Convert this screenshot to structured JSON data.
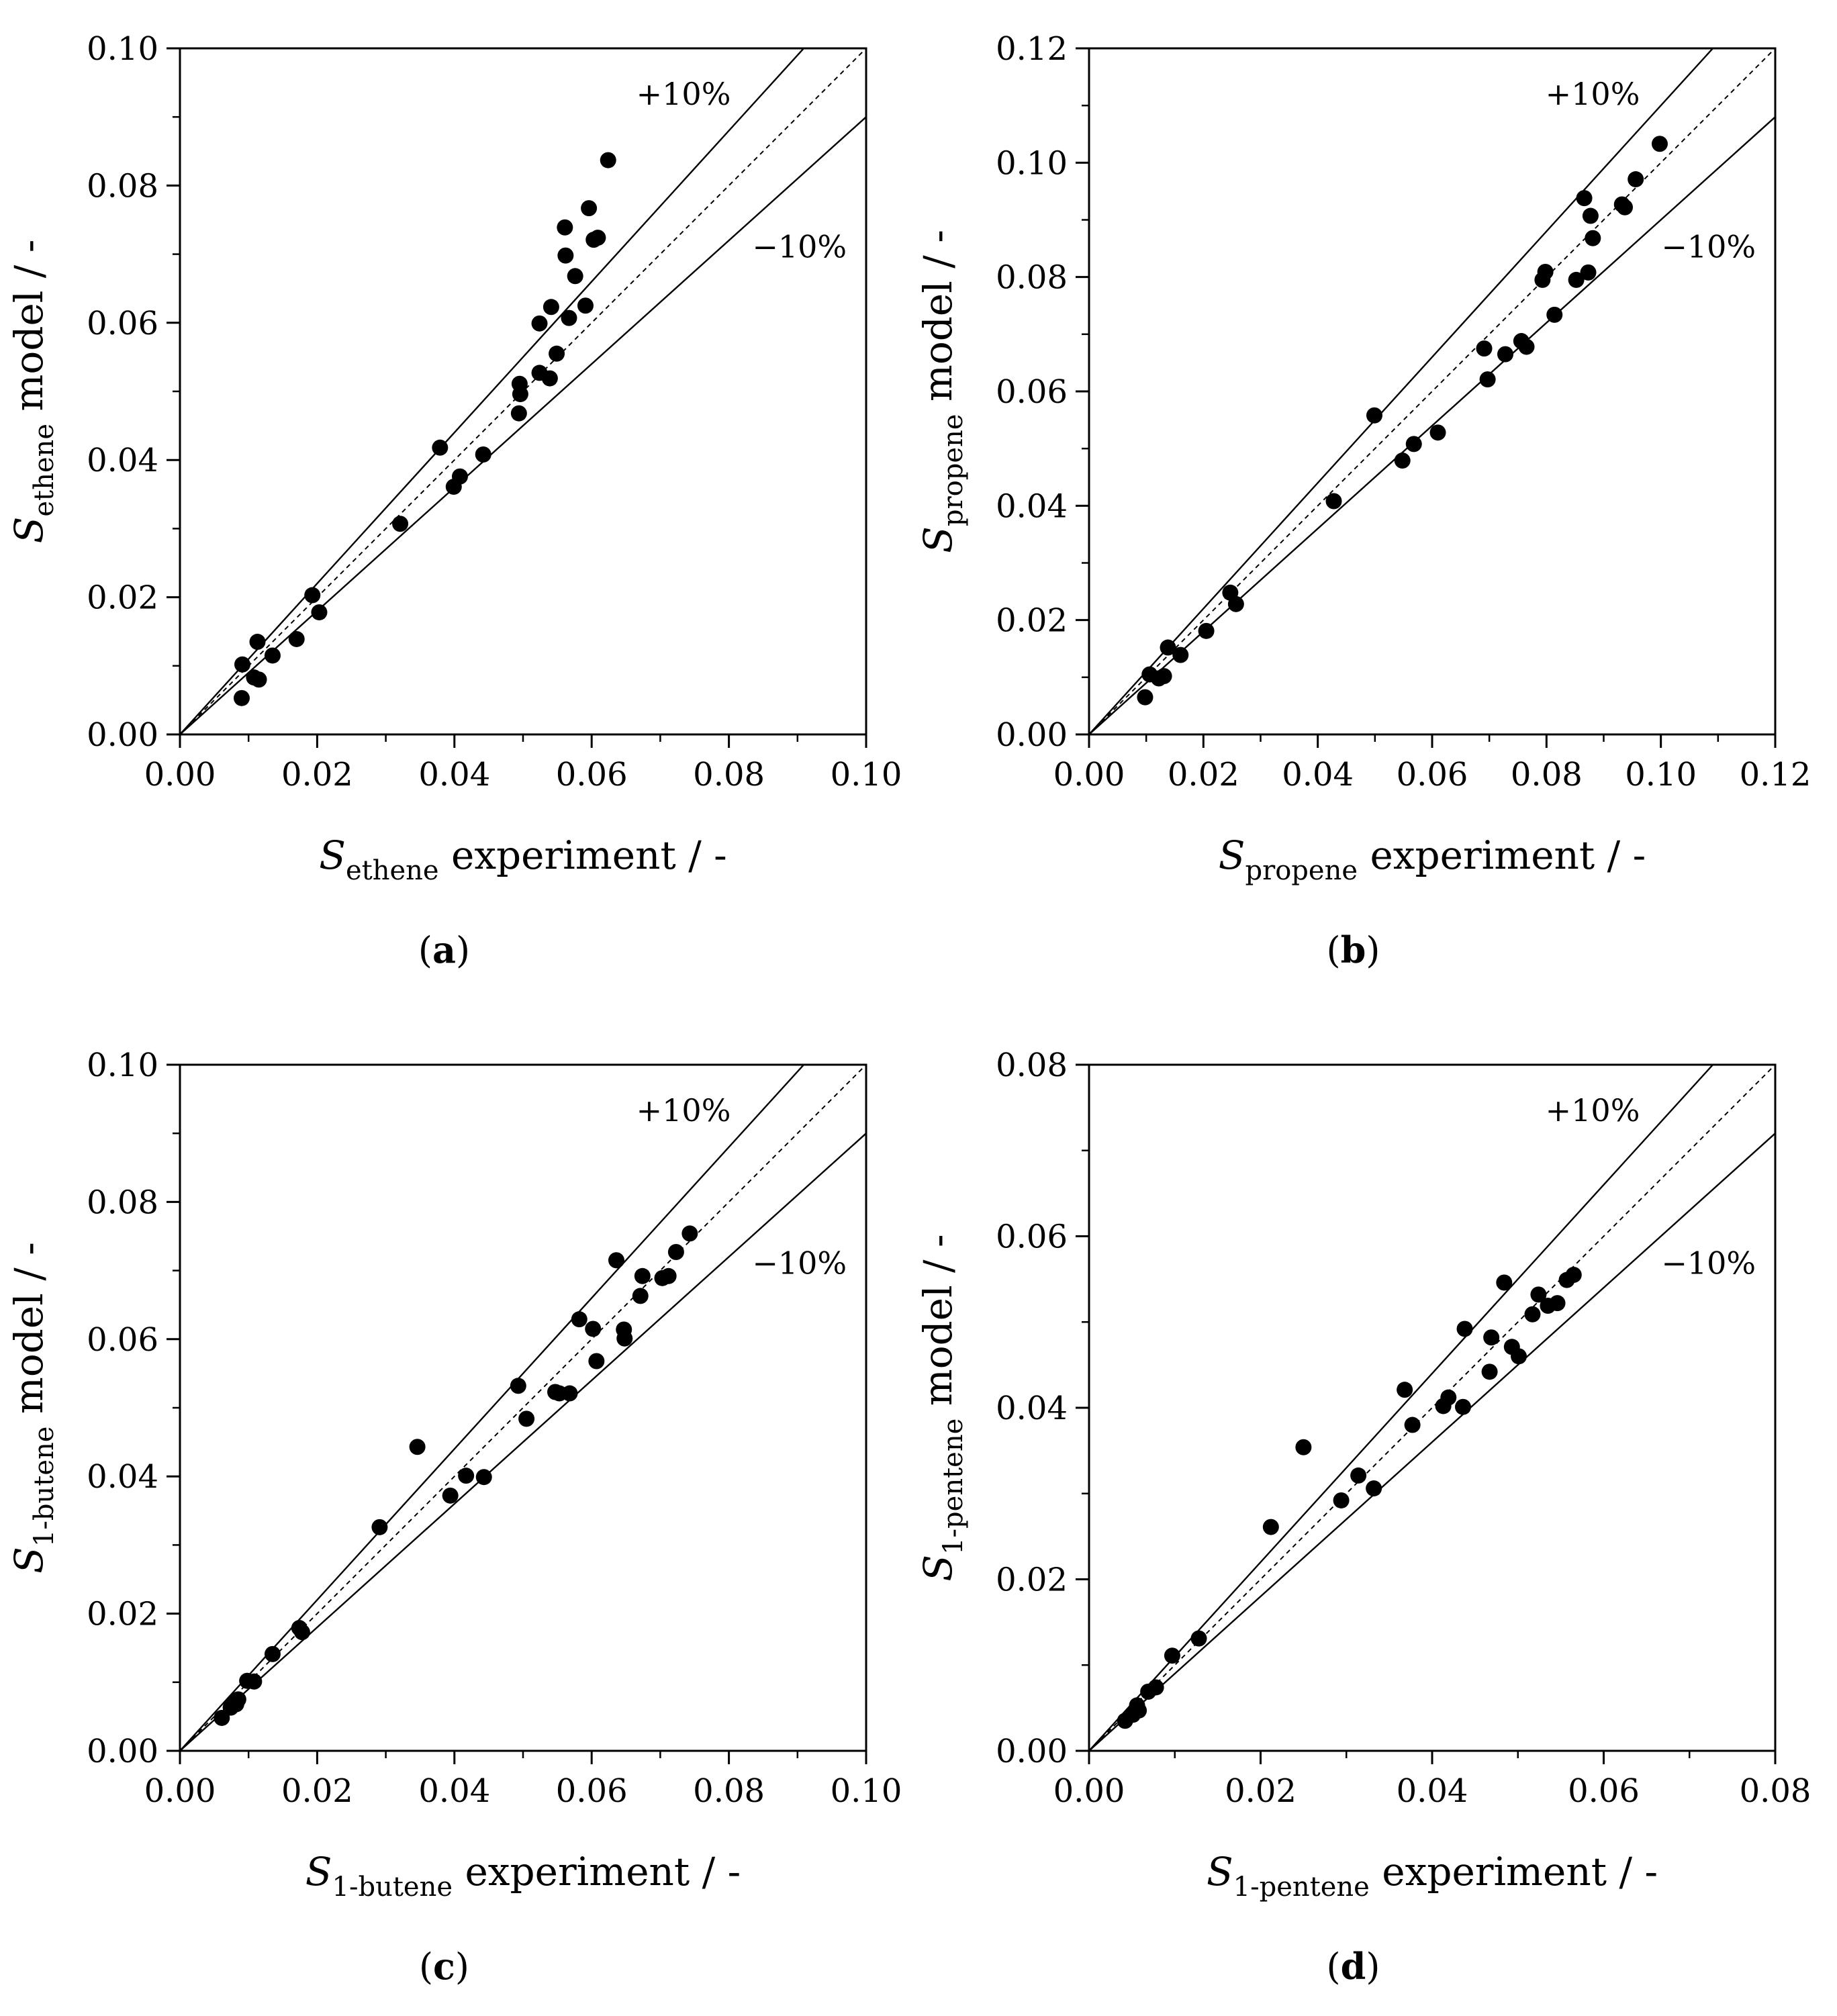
{
  "figure": {
    "band_labels": {
      "plus": "+10%",
      "minus": "−10%"
    },
    "y_suffix": "model / -",
    "x_suffix": "experiment / -",
    "symbol": "S"
  },
  "chart_data": [
    {
      "id": "a",
      "type": "scatter",
      "caption": "(a)",
      "caption_letter": "a",
      "species": "ethene",
      "xlabel": "S_ethene experiment / -",
      "ylabel": "S_ethene model / -",
      "xlim": [
        0,
        0.1
      ],
      "ylim": [
        0,
        0.1
      ],
      "xticks": [
        "0.00",
        "0.02",
        "0.04",
        "0.06",
        "0.08",
        "0.10"
      ],
      "yticks": [
        "0.00",
        "0.02",
        "0.04",
        "0.06",
        "0.08",
        "0.10"
      ],
      "reference_lines": [
        {
          "name": "parity",
          "slope": 1.0,
          "style": "dashed"
        },
        {
          "name": "+10%",
          "slope": 1.1,
          "style": "solid"
        },
        {
          "name": "−10%",
          "slope": 0.9,
          "style": "solid"
        }
      ],
      "points": [
        [
          0.009,
          0.0053
        ],
        [
          0.0091,
          0.0102
        ],
        [
          0.0108,
          0.0083
        ],
        [
          0.0113,
          0.0135
        ],
        [
          0.0115,
          0.008
        ],
        [
          0.0135,
          0.0115
        ],
        [
          0.017,
          0.0139
        ],
        [
          0.0193,
          0.0203
        ],
        [
          0.0203,
          0.0178
        ],
        [
          0.0321,
          0.0307
        ],
        [
          0.0379,
          0.0418
        ],
        [
          0.0399,
          0.0361
        ],
        [
          0.0408,
          0.0376
        ],
        [
          0.0442,
          0.0408
        ],
        [
          0.0494,
          0.0468
        ],
        [
          0.0495,
          0.0511
        ],
        [
          0.0496,
          0.0496
        ],
        [
          0.0524,
          0.0527
        ],
        [
          0.0524,
          0.0599
        ],
        [
          0.0539,
          0.0519
        ],
        [
          0.0541,
          0.0623
        ],
        [
          0.0549,
          0.0555
        ],
        [
          0.0561,
          0.0739
        ],
        [
          0.0562,
          0.0698
        ],
        [
          0.0567,
          0.0607
        ],
        [
          0.0576,
          0.0668
        ],
        [
          0.0591,
          0.0625
        ],
        [
          0.0596,
          0.0767
        ],
        [
          0.0603,
          0.0721
        ],
        [
          0.0609,
          0.0724
        ],
        [
          0.0624,
          0.0837
        ]
      ]
    },
    {
      "id": "b",
      "type": "scatter",
      "caption": "(b)",
      "caption_letter": "b",
      "species": "propene",
      "xlabel": "S_propene experiment / -",
      "ylabel": "S_propene model / -",
      "xlim": [
        0,
        0.12
      ],
      "ylim": [
        0,
        0.12
      ],
      "xticks": [
        "0.00",
        "0.02",
        "0.04",
        "0.06",
        "0.08",
        "0.10",
        "0.12"
      ],
      "yticks": [
        "0.00",
        "0.02",
        "0.04",
        "0.06",
        "0.08",
        "0.10",
        "0.12"
      ],
      "reference_lines": [
        {
          "name": "parity",
          "slope": 1.0,
          "style": "dashed"
        },
        {
          "name": "+10%",
          "slope": 1.1,
          "style": "solid"
        },
        {
          "name": "−10%",
          "slope": 0.9,
          "style": "solid"
        }
      ],
      "points": [
        [
          0.0098,
          0.0065
        ],
        [
          0.0106,
          0.0105
        ],
        [
          0.0122,
          0.0098
        ],
        [
          0.0131,
          0.0102
        ],
        [
          0.0138,
          0.0152
        ],
        [
          0.016,
          0.0139
        ],
        [
          0.0205,
          0.0181
        ],
        [
          0.0247,
          0.0248
        ],
        [
          0.0257,
          0.0228
        ],
        [
          0.0428,
          0.0408
        ],
        [
          0.0499,
          0.0558
        ],
        [
          0.0548,
          0.0479
        ],
        [
          0.0568,
          0.0508
        ],
        [
          0.061,
          0.0528
        ],
        [
          0.0691,
          0.0675
        ],
        [
          0.0697,
          0.0621
        ],
        [
          0.0728,
          0.0665
        ],
        [
          0.0756,
          0.0688
        ],
        [
          0.0765,
          0.0678
        ],
        [
          0.0793,
          0.0795
        ],
        [
          0.0798,
          0.0809
        ],
        [
          0.0814,
          0.0734
        ],
        [
          0.0852,
          0.0795
        ],
        [
          0.0866,
          0.0938
        ],
        [
          0.0873,
          0.0808
        ],
        [
          0.0877,
          0.0907
        ],
        [
          0.0881,
          0.0868
        ],
        [
          0.0932,
          0.0927
        ],
        [
          0.0937,
          0.0922
        ],
        [
          0.0956,
          0.0971
        ],
        [
          0.0998,
          0.1033
        ]
      ]
    },
    {
      "id": "c",
      "type": "scatter",
      "caption": "(c)",
      "caption_letter": "c",
      "species": "1-butene",
      "xlabel": "S_1-butene experiment / -",
      "ylabel": "S_1-butene model / -",
      "xlim": [
        0,
        0.1
      ],
      "ylim": [
        0,
        0.1
      ],
      "xticks": [
        "0.00",
        "0.02",
        "0.04",
        "0.06",
        "0.08",
        "0.10"
      ],
      "yticks": [
        "0.00",
        "0.02",
        "0.04",
        "0.06",
        "0.08",
        "0.10"
      ],
      "reference_lines": [
        {
          "name": "parity",
          "slope": 1.0,
          "style": "dashed"
        },
        {
          "name": "+10%",
          "slope": 1.1,
          "style": "solid"
        },
        {
          "name": "−10%",
          "slope": 0.9,
          "style": "solid"
        }
      ],
      "points": [
        [
          0.0061,
          0.0048
        ],
        [
          0.0074,
          0.0063
        ],
        [
          0.0079,
          0.0071
        ],
        [
          0.0082,
          0.0068
        ],
        [
          0.0085,
          0.0075
        ],
        [
          0.0098,
          0.0102
        ],
        [
          0.0108,
          0.0101
        ],
        [
          0.0135,
          0.0141
        ],
        [
          0.0174,
          0.0179
        ],
        [
          0.0178,
          0.0173
        ],
        [
          0.0291,
          0.0326
        ],
        [
          0.0346,
          0.0443
        ],
        [
          0.0394,
          0.0372
        ],
        [
          0.0417,
          0.0401
        ],
        [
          0.0443,
          0.0399
        ],
        [
          0.0493,
          0.0532
        ],
        [
          0.0505,
          0.0484
        ],
        [
          0.0547,
          0.0523
        ],
        [
          0.0553,
          0.0521
        ],
        [
          0.0568,
          0.0521
        ],
        [
          0.0582,
          0.0629
        ],
        [
          0.0602,
          0.0615
        ],
        [
          0.0607,
          0.0568
        ],
        [
          0.0636,
          0.0715
        ],
        [
          0.0647,
          0.0614
        ],
        [
          0.0648,
          0.0601
        ],
        [
          0.0671,
          0.0663
        ],
        [
          0.0674,
          0.0692
        ],
        [
          0.0703,
          0.0689
        ],
        [
          0.0712,
          0.0692
        ],
        [
          0.0723,
          0.0727
        ],
        [
          0.0743,
          0.0754
        ]
      ]
    },
    {
      "id": "d",
      "type": "scatter",
      "caption": "(d)",
      "caption_letter": "d",
      "species": "1-pentene",
      "xlabel": "S_1-pentene experiment / -",
      "ylabel": "S_1-pentene model / -",
      "xlim": [
        0,
        0.08
      ],
      "ylim": [
        0,
        0.08
      ],
      "xticks": [
        "0.00",
        "0.02",
        "0.04",
        "0.06",
        "0.08"
      ],
      "yticks": [
        "0.00",
        "0.02",
        "0.04",
        "0.06",
        "0.08"
      ],
      "reference_lines": [
        {
          "name": "parity",
          "slope": 1.0,
          "style": "dashed"
        },
        {
          "name": "+10%",
          "slope": 1.1,
          "style": "solid"
        },
        {
          "name": "−10%",
          "slope": 0.9,
          "style": "solid"
        }
      ],
      "points": [
        [
          0.0042,
          0.0035
        ],
        [
          0.0051,
          0.0042
        ],
        [
          0.0056,
          0.0053
        ],
        [
          0.0058,
          0.0047
        ],
        [
          0.0069,
          0.0069
        ],
        [
          0.0078,
          0.0074
        ],
        [
          0.0097,
          0.0111
        ],
        [
          0.0128,
          0.0131
        ],
        [
          0.0212,
          0.0261
        ],
        [
          0.025,
          0.0354
        ],
        [
          0.0294,
          0.0292
        ],
        [
          0.0314,
          0.0321
        ],
        [
          0.0332,
          0.0306
        ],
        [
          0.0368,
          0.0421
        ],
        [
          0.0377,
          0.038
        ],
        [
          0.0413,
          0.0402
        ],
        [
          0.0419,
          0.0412
        ],
        [
          0.0436,
          0.0401
        ],
        [
          0.0438,
          0.0492
        ],
        [
          0.0467,
          0.0442
        ],
        [
          0.0469,
          0.0482
        ],
        [
          0.0484,
          0.0546
        ],
        [
          0.0493,
          0.0471
        ],
        [
          0.0501,
          0.046
        ],
        [
          0.0517,
          0.0509
        ],
        [
          0.0524,
          0.0532
        ],
        [
          0.0535,
          0.0519
        ],
        [
          0.0546,
          0.0522
        ],
        [
          0.0557,
          0.0549
        ],
        [
          0.0565,
          0.0555
        ]
      ]
    }
  ]
}
